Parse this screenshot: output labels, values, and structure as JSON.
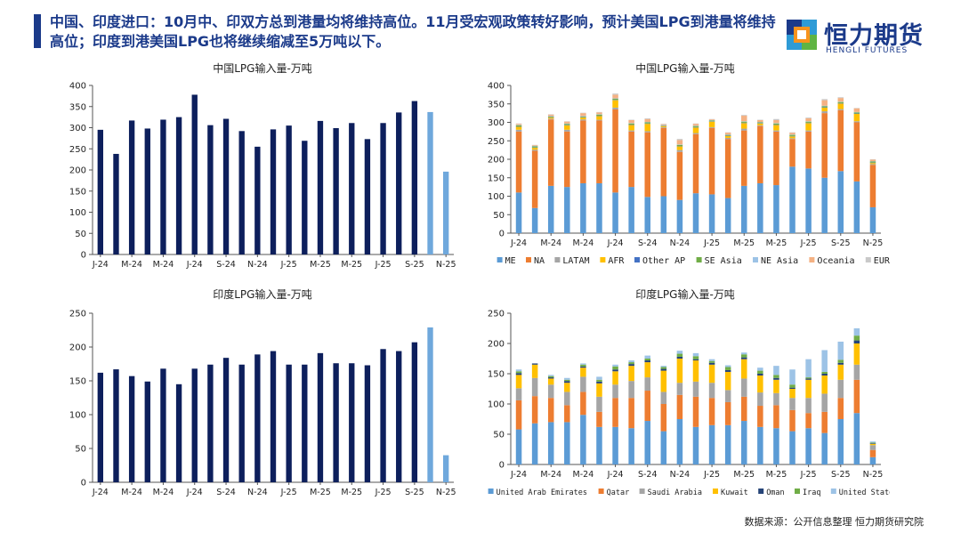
{
  "headline": "中国、印度进口：10月中、印双方总到港量均将维持高位。11月受宏观政策转好影响，预计美国LPG到港量将维持高位；印度到港美国LPG也将继续缩减至5万吨以下。",
  "logo": {
    "name": "恒力期货",
    "sub": "HENGLI FUTURES"
  },
  "footer": "数据来源：公开信息整理  恒力期货研究院",
  "chart_data": [
    {
      "id": "china_total",
      "type": "bar",
      "title": "中国LPG输入量-万吨",
      "ylim": [
        0,
        400
      ],
      "yticks": [
        0,
        50,
        100,
        150,
        200,
        250,
        300,
        350,
        400
      ],
      "tick_labels": [
        "J-24",
        "M-24",
        "M-24",
        "J-24",
        "S-24",
        "N-24",
        "J-25",
        "M-25",
        "M-25",
        "J-25",
        "S-25",
        "N-25"
      ],
      "values": [
        295,
        238,
        317,
        298,
        319,
        325,
        378,
        306,
        321,
        292,
        255,
        296,
        305,
        269,
        316,
        299,
        311,
        273,
        311,
        336,
        363,
        337,
        196
      ],
      "forecast_from_index": 21,
      "colors": {
        "actual": "#0d1f5c",
        "forecast": "#6fa8dc"
      }
    },
    {
      "id": "china_source",
      "type": "stacked-bar",
      "title": "中国LPG输入量-万吨",
      "ylim": [
        0,
        400
      ],
      "yticks": [
        0,
        50,
        100,
        150,
        200,
        250,
        300,
        350,
        400
      ],
      "tick_labels": [
        "J-24",
        "M-24",
        "M-24",
        "J-24",
        "S-24",
        "N-24",
        "J-25",
        "M-25",
        "M-25",
        "J-25",
        "S-25",
        "N-25"
      ],
      "series": [
        {
          "name": "ME",
          "color": "#5b9bd5",
          "values": [
            110,
            68,
            128,
            125,
            135,
            135,
            110,
            125,
            98,
            100,
            90,
            108,
            105,
            95,
            128,
            135,
            130,
            180,
            175,
            150,
            168,
            140,
            70
          ]
        },
        {
          "name": "NA",
          "color": "#ed7d31",
          "values": [
            165,
            155,
            180,
            150,
            170,
            170,
            225,
            150,
            175,
            185,
            130,
            160,
            180,
            160,
            150,
            155,
            145,
            75,
            100,
            175,
            165,
            160,
            115
          ]
        },
        {
          "name": "LATAM",
          "color": "#a5a5a5",
          "values": [
            5,
            3,
            2,
            5,
            3,
            2,
            5,
            3,
            3,
            2,
            5,
            3,
            2,
            3,
            5,
            2,
            3,
            2,
            3,
            5,
            3,
            3,
            2
          ]
        },
        {
          "name": "AFR",
          "color": "#ffc000",
          "values": [
            8,
            5,
            3,
            12,
            5,
            10,
            20,
            15,
            20,
            3,
            10,
            15,
            15,
            5,
            15,
            5,
            15,
            5,
            20,
            10,
            15,
            20,
            3
          ]
        },
        {
          "name": "Other AP",
          "color": "#4472c4",
          "values": [
            1,
            1,
            1,
            1,
            1,
            1,
            1,
            1,
            1,
            1,
            1,
            1,
            1,
            1,
            1,
            1,
            1,
            1,
            1,
            1,
            1,
            1,
            1
          ]
        },
        {
          "name": "SE Asia",
          "color": "#70ad47",
          "values": [
            3,
            3,
            2,
            3,
            2,
            3,
            3,
            3,
            3,
            1,
            3,
            3,
            2,
            2,
            3,
            2,
            3,
            3,
            3,
            3,
            3,
            3,
            3
          ]
        },
        {
          "name": "NE Asia",
          "color": "#9dc3e6",
          "values": [
            1,
            1,
            1,
            1,
            1,
            1,
            1,
            1,
            1,
            1,
            1,
            1,
            1,
            1,
            1,
            1,
            1,
            1,
            1,
            1,
            1,
            1,
            1
          ]
        },
        {
          "name": "Oceania",
          "color": "#f4b183",
          "values": [
            3,
            2,
            4,
            5,
            8,
            5,
            10,
            8,
            8,
            2,
            12,
            5,
            2,
            5,
            15,
            5,
            8,
            5,
            8,
            15,
            10,
            10,
            4
          ]
        },
        {
          "name": "EUR",
          "color": "#c9c9c9",
          "values": [
            1,
            1,
            1,
            1,
            1,
            1,
            3,
            1,
            2,
            1,
            3,
            1,
            1,
            1,
            2,
            1,
            3,
            1,
            2,
            3,
            2,
            1,
            1
          ]
        }
      ]
    },
    {
      "id": "india_total",
      "type": "bar",
      "title": "印度LPG输入量-万吨",
      "ylim": [
        0,
        250
      ],
      "yticks": [
        0,
        50,
        100,
        150,
        200,
        250
      ],
      "tick_labels": [
        "J-24",
        "M-24",
        "M-24",
        "J-24",
        "S-24",
        "N-24",
        "J-25",
        "M-25",
        "M-25",
        "J-25",
        "S-25",
        "N-25"
      ],
      "values": [
        162,
        167,
        157,
        149,
        168,
        145,
        168,
        174,
        184,
        174,
        189,
        194,
        174,
        174,
        191,
        176,
        176,
        173,
        197,
        194,
        207,
        229,
        40
      ],
      "forecast_from_index": 21,
      "colors": {
        "actual": "#0d1f5c",
        "forecast": "#6fa8dc"
      }
    },
    {
      "id": "india_source",
      "type": "stacked-bar",
      "title": "印度LPG输入量-万吨",
      "ylim": [
        0,
        250
      ],
      "yticks": [
        0,
        50,
        100,
        150,
        200,
        250
      ],
      "tick_labels": [
        "J-24",
        "M-24",
        "M-24",
        "J-24",
        "S-24",
        "N-24",
        "J-25",
        "M-25",
        "M-25",
        "J-25",
        "S-25",
        "N-25"
      ],
      "series": [
        {
          "name": "United Arab Emirates",
          "color": "#5b9bd5",
          "values": [
            58,
            68,
            70,
            70,
            82,
            62,
            62,
            60,
            72,
            55,
            75,
            62,
            65,
            65,
            72,
            62,
            60,
            55,
            60,
            52,
            75,
            85,
            12
          ]
        },
        {
          "name": "Qatar",
          "color": "#ed7d31",
          "values": [
            48,
            45,
            40,
            28,
            38,
            25,
            48,
            50,
            50,
            45,
            40,
            50,
            45,
            38,
            40,
            35,
            38,
            35,
            25,
            35,
            35,
            55,
            12
          ]
        },
        {
          "name": "Saudi Arabia",
          "color": "#a5a5a5",
          "values": [
            20,
            30,
            22,
            22,
            25,
            25,
            22,
            28,
            22,
            20,
            20,
            25,
            25,
            20,
            30,
            22,
            20,
            20,
            25,
            30,
            30,
            25,
            8
          ]
        },
        {
          "name": "Kuwait",
          "color": "#ffc000",
          "values": [
            22,
            22,
            10,
            15,
            15,
            22,
            22,
            25,
            25,
            35,
            40,
            35,
            30,
            30,
            32,
            28,
            22,
            15,
            30,
            30,
            25,
            35,
            2
          ]
        },
        {
          "name": "Oman",
          "color": "#264478",
          "values": [
            3,
            2,
            2,
            3,
            2,
            3,
            3,
            3,
            3,
            3,
            3,
            2,
            3,
            3,
            3,
            3,
            3,
            2,
            2,
            3,
            3,
            5,
            1
          ]
        },
        {
          "name": "Iraq",
          "color": "#70ad47",
          "values": [
            3,
            0,
            2,
            2,
            3,
            3,
            5,
            3,
            3,
            3,
            5,
            5,
            3,
            5,
            5,
            5,
            5,
            5,
            2,
            3,
            5,
            8,
            1
          ]
        },
        {
          "name": "United States",
          "color": "#9dc3e6",
          "values": [
            3,
            0,
            2,
            3,
            2,
            5,
            3,
            3,
            5,
            2,
            5,
            5,
            3,
            3,
            3,
            5,
            15,
            25,
            30,
            36,
            30,
            12,
            2
          ]
        }
      ]
    }
  ]
}
